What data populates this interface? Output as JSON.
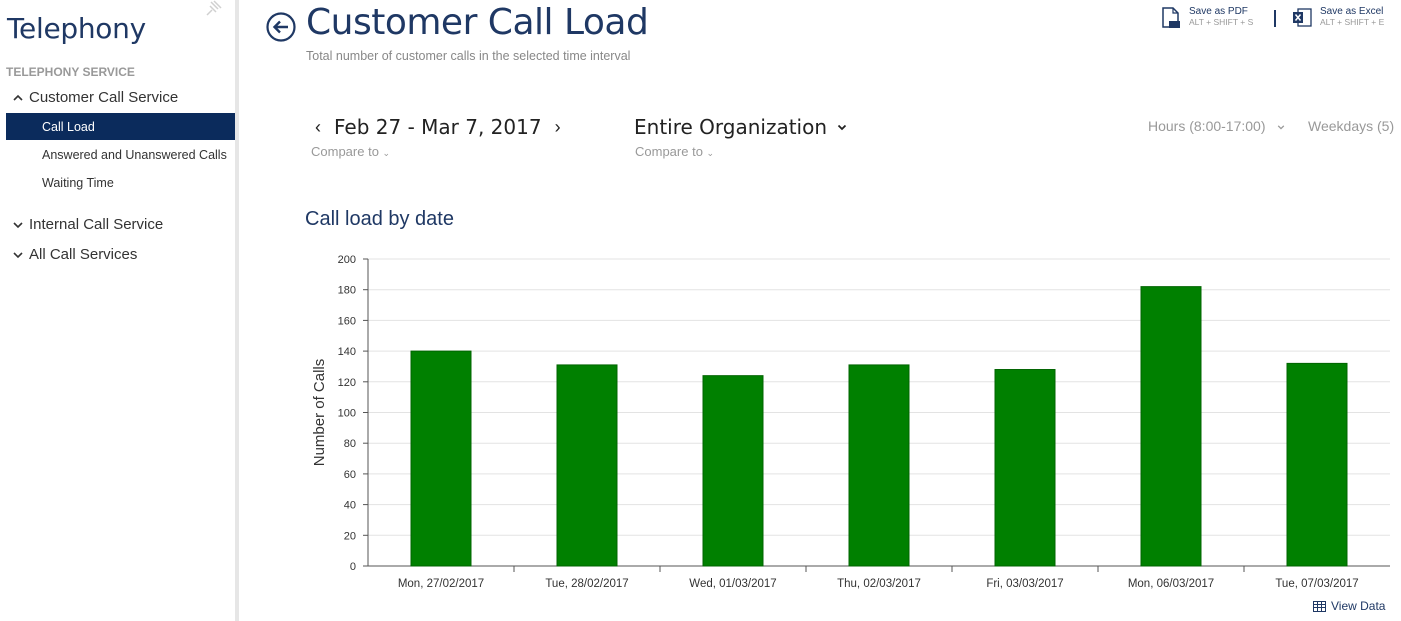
{
  "sidebar": {
    "app_title": "Telephony",
    "section_label": "TELEPHONY SERVICE",
    "groups": [
      {
        "label": "Customer Call Service",
        "expanded": true
      },
      {
        "label": "Internal Call Service",
        "expanded": false
      },
      {
        "label": "All Call Services",
        "expanded": false
      }
    ],
    "sub_items": [
      {
        "label": "Call Load",
        "active": true
      },
      {
        "label": "Answered and Unanswered Calls",
        "active": false
      },
      {
        "label": "Waiting Time",
        "active": false
      }
    ]
  },
  "header": {
    "title": "Customer Call Load",
    "subtitle": "Total number of customer calls in the selected time interval"
  },
  "exports": {
    "pdf_label": "Save as PDF",
    "pdf_shortcut": "ALT + SHIFT + S",
    "excel_label": "Save as Excel",
    "excel_shortcut": "ALT + SHIFT + E"
  },
  "filters": {
    "date_range": "Feb 27 - Mar 7, 2017",
    "date_compare": "Compare to",
    "organization": "Entire Organization",
    "org_compare": "Compare to",
    "hours": "Hours (8:00-17:00)",
    "weekdays": "Weekdays (5)"
  },
  "chart_title": "Call load by date",
  "view_data_label": "View Data",
  "colors": {
    "bar": "#008000",
    "title": "#1f3864",
    "active_nav": "#0b2b5c"
  },
  "chart_data": {
    "type": "bar",
    "categories": [
      "Mon, 27/02/2017",
      "Tue, 28/02/2017",
      "Wed, 01/03/2017",
      "Thu, 02/03/2017",
      "Fri, 03/03/2017",
      "Mon, 06/03/2017",
      "Tue, 07/03/2017"
    ],
    "values": [
      140,
      131,
      124,
      131,
      128,
      182,
      132
    ],
    "ylabel": "Number of Calls",
    "xlabel": "",
    "ylim": [
      0,
      200
    ],
    "yticks": [
      0,
      20,
      40,
      60,
      80,
      100,
      120,
      140,
      160,
      180,
      200
    ],
    "grid": true
  }
}
